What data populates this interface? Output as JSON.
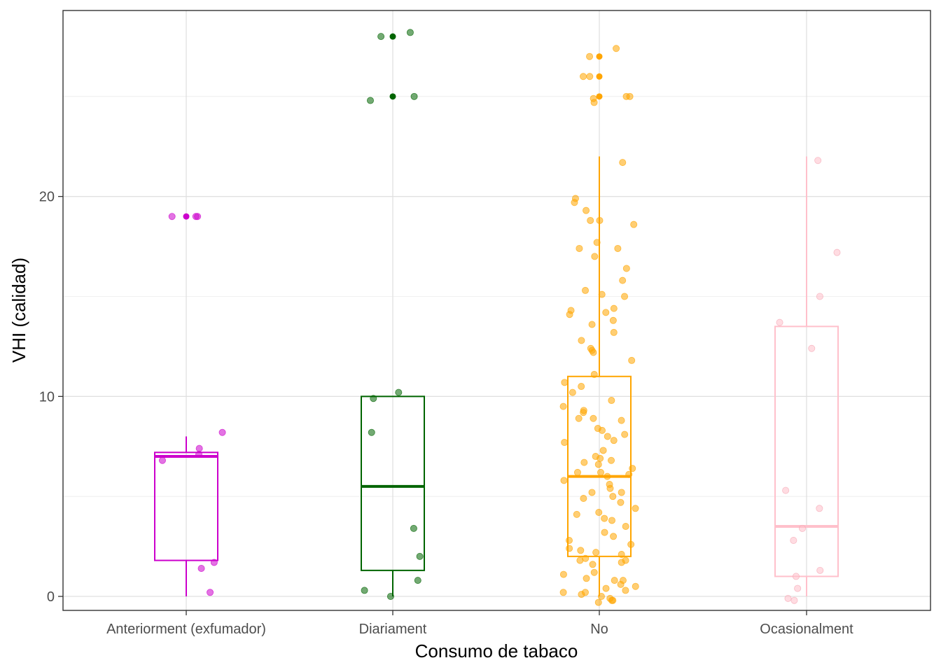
{
  "chart_data": {
    "type": "boxplot",
    "xlabel": "Consumo de tabaco",
    "ylabel": "VHI (calidad)",
    "categories": [
      "Anteriorment (exfumador)",
      "Diariament",
      "No",
      "Ocasionalment"
    ],
    "ylim": [
      -0.7,
      29.3
    ],
    "yticks": [
      0,
      10,
      20
    ],
    "grid": true,
    "legend": "none",
    "colors": [
      "#CC00CC",
      "#006400",
      "#FFA500",
      "#FFC0CB"
    ],
    "boxes": [
      {
        "category": "Anteriorment (exfumador)",
        "lower_whisker": 0,
        "q1": 1.8,
        "median": 7,
        "q3": 7.2,
        "upper_whisker": 8,
        "outliers": [
          19
        ]
      },
      {
        "category": "Diariament",
        "lower_whisker": 0,
        "q1": 1.3,
        "median": 5.5,
        "q3": 10,
        "upper_whisker": 10,
        "outliers": [
          25,
          28
        ]
      },
      {
        "category": "No",
        "lower_whisker": 0,
        "q1": 2,
        "median": 6,
        "q3": 11,
        "upper_whisker": 22,
        "outliers": [
          25,
          26,
          27
        ]
      },
      {
        "category": "Ocasionalment",
        "lower_whisker": 0,
        "q1": 1,
        "median": 3.5,
        "q3": 13.5,
        "upper_whisker": 22,
        "outliers": []
      }
    ],
    "points": [
      {
        "category": "Anteriorment (exfumador)",
        "values": [
          19,
          19,
          19,
          8.2,
          7.4,
          7.1,
          6.8,
          1.7,
          1.4,
          0.2
        ]
      },
      {
        "category": "Diariament",
        "values": [
          28.2,
          28,
          25,
          24.8,
          10.2,
          9.9,
          8.2,
          3.4,
          2,
          0.8,
          0.3,
          0
        ]
      },
      {
        "category": "No",
        "values": [
          27.4,
          27,
          26,
          26,
          25,
          25,
          24.9,
          24.7,
          21.7,
          19.9,
          19.7,
          19.3,
          18.8,
          18.8,
          18.6,
          17.7,
          17.4,
          17.4,
          17,
          16.4,
          15.8,
          15.3,
          15.1,
          15,
          14.4,
          14.3,
          14.2,
          14.1,
          13.8,
          13.6,
          13.2,
          12.8,
          12.4,
          12.3,
          12.2,
          11.8,
          11.1,
          10.7,
          10.5,
          10.2,
          9.8,
          9.5,
          9.3,
          9.2,
          8.9,
          8.9,
          8.8,
          8.4,
          8.3,
          8.1,
          8,
          7.8,
          7.7,
          7.3,
          7,
          6.9,
          6.8,
          6.7,
          6.6,
          6.4,
          6.2,
          6.2,
          6.1,
          6,
          5.8,
          5.6,
          5.4,
          5.2,
          5.2,
          5,
          4.9,
          4.7,
          4.4,
          4.2,
          4.1,
          3.9,
          3.8,
          3.5,
          3.2,
          3,
          2.8,
          2.6,
          2.4,
          2.3,
          2.2,
          2.1,
          1.9,
          1.8,
          1.8,
          1.7,
          1.6,
          1.2,
          1.1,
          0.9,
          0.8,
          0.8,
          0.6,
          0.5,
          0.4,
          0.3,
          0.2,
          0.2,
          0.1,
          0,
          -0.1,
          -0.2,
          -0.2,
          -0.3
        ]
      },
      {
        "category": "Ocasionalment",
        "values": [
          21.8,
          17.2,
          15,
          13.7,
          12.4,
          5.3,
          4.4,
          3.4,
          2.8,
          1.3,
          1,
          0.4,
          -0.1,
          -0.2
        ]
      }
    ]
  }
}
